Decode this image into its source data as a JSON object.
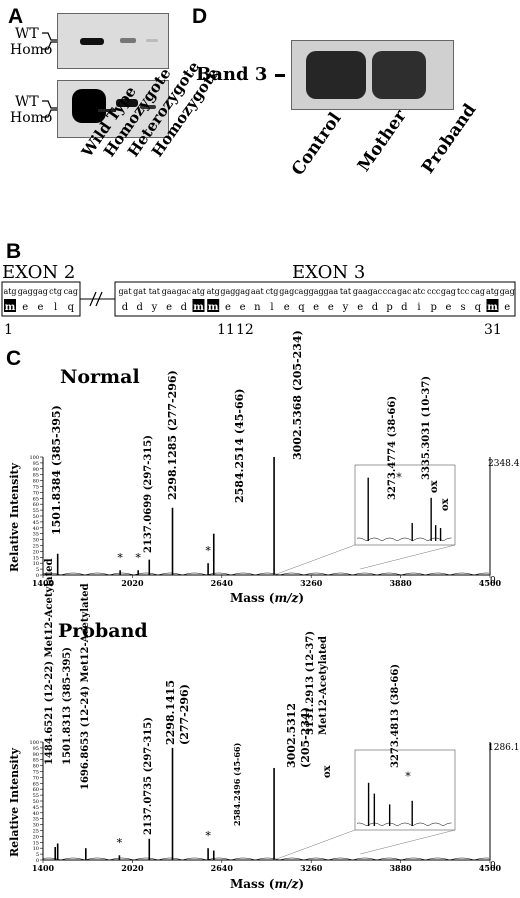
{
  "panels": {
    "A": {
      "label": "A",
      "marker_top_upper": "WT",
      "marker_top_lower": "Homo",
      "marker_bottom_upper": "WT",
      "marker_bottom_lower": "Homo",
      "lanes": [
        "Wild Type",
        "Homozygote",
        "Heterozygote",
        "Homozygote"
      ]
    },
    "D": {
      "label": "D",
      "band_label": "Band 3",
      "lanes": [
        "Control",
        "Mother",
        "Proband"
      ]
    },
    "B": {
      "label": "B",
      "exon2_title": "EXON 2",
      "exon3_title": "EXON 3",
      "exon2_codons": [
        "atg",
        "gag",
        "gag",
        "ctg",
        "cag"
      ],
      "exon2_aa": [
        "m",
        "e",
        "e",
        "l",
        "q"
      ],
      "exon3_codons": [
        "gat",
        "gat",
        "tat",
        "gaa",
        "gac",
        "atg",
        "atg",
        "gag",
        "gag",
        "aat",
        "ctg",
        "gag",
        "cag",
        "gag",
        "gaa",
        "tat",
        "gaa",
        "gac",
        "cca",
        "gac",
        "atc",
        "ccc",
        "gag",
        "tcc",
        "cag",
        "atg",
        "gag"
      ],
      "exon3_aa": [
        "d",
        "d",
        "y",
        "e",
        "d",
        "m",
        "m",
        "e",
        "e",
        "n",
        "l",
        "e",
        "q",
        "e",
        "e",
        "y",
        "e",
        "d",
        "p",
        "d",
        "i",
        "p",
        "e",
        "s",
        "q",
        "m",
        "e"
      ],
      "pos_1": "1",
      "pos_11": "11",
      "pos_12": "12",
      "pos_31": "31"
    },
    "C": {
      "label": "C",
      "normal": {
        "title": "Normal",
        "ylabel": "Relative Intensity",
        "xlabel_main": "Mass (",
        "xlabel_mz": "m/z",
        "xlabel_end": ")",
        "yticks": [
          "0",
          "5",
          "10",
          "15",
          "20",
          "25",
          "30",
          "35",
          "40",
          "45",
          "50",
          "55",
          "60",
          "65",
          "70",
          "75",
          "80",
          "85",
          "90",
          "95",
          "100"
        ],
        "xticks": [
          "1400",
          "2020",
          "2640",
          "3260",
          "3880",
          "4500"
        ],
        "max_label": "2348.4",
        "right_zero": "0",
        "peak_labels": [
          "1501.8384 (385-395)",
          "2137.0699 (297-315)",
          "2298.1285 (277-296)",
          "2584.2514 (45-66)",
          "3002.5368 (205-234)",
          "3273.4774 (38-66)",
          "3335.3031 (10-37)"
        ],
        "ox": [
          "ox",
          "ox"
        ],
        "star": "*"
      },
      "proband": {
        "title": "Proband",
        "ylabel": "Relative Intensity",
        "xlabel_main": "Mass (",
        "xlabel_mz": "m/z",
        "xlabel_end": ")",
        "yticks": [
          "0",
          "5",
          "10",
          "15",
          "20",
          "25",
          "30",
          "35",
          "40",
          "45",
          "50",
          "55",
          "60",
          "65",
          "70",
          "75",
          "80",
          "85",
          "90",
          "95",
          "100"
        ],
        "xticks": [
          "1400",
          "2020",
          "2640",
          "3260",
          "3880",
          "4500"
        ],
        "max_label": "1286.1",
        "right_zero": "0",
        "peak_labels": [
          "1484.6521 (12-22) Met12-Acetylated",
          "1501.8313 (385-395)",
          "1696.8653 (12-24) Met12-Acetylated",
          "2137.0735 (297-315)",
          "2298.1415",
          "(277-296)",
          "2584.2496 (45-66)",
          "3002.5312",
          "(205-234)",
          "3131.2913 (12-37)",
          "Met12-Acetylated",
          "3273.4813 (38-66)"
        ],
        "ox": [
          "ox"
        ],
        "star": "*"
      }
    }
  },
  "chart_data": [
    {
      "type": "bar",
      "title": "Normal",
      "xlabel": "Mass (m/z)",
      "ylabel": "Relative Intensity",
      "xlim": [
        1400,
        4500
      ],
      "ylim": [
        0,
        100
      ],
      "max_intensity_label": "2348.4",
      "series": [
        {
          "x": [
            1501.8384,
            1935,
            2060,
            2137.0699,
            2298.1285,
            2545,
            2584.2514,
            3002.5368
          ],
          "values": [
            18,
            4,
            4,
            13,
            57,
            10,
            35,
            100
          ]
        }
      ],
      "inset": {
        "x": [
          3130,
          3273.4774,
          3335.3031,
          3350,
          3366
        ],
        "values": [
          88,
          25,
          60,
          22,
          18
        ]
      }
    },
    {
      "type": "bar",
      "title": "Proband",
      "xlabel": "Mass (m/z)",
      "ylabel": "Relative Intensity",
      "xlim": [
        1400,
        4500
      ],
      "ylim": [
        0,
        100
      ],
      "max_intensity_label": "1286.1",
      "series": [
        {
          "x": [
            1484.6521,
            1501.8313,
            1696.8653,
            1930,
            2137.0735,
            2298.1415,
            2545,
            2584.2496,
            3002.5312
          ],
          "values": [
            11,
            14,
            10,
            4,
            18,
            95,
            10,
            8,
            78
          ]
        }
      ],
      "inset": {
        "x": [
          3131.2913,
          3150,
          3200,
          3273.4813
        ],
        "values": [
          60,
          45,
          30,
          35
        ]
      }
    }
  ]
}
